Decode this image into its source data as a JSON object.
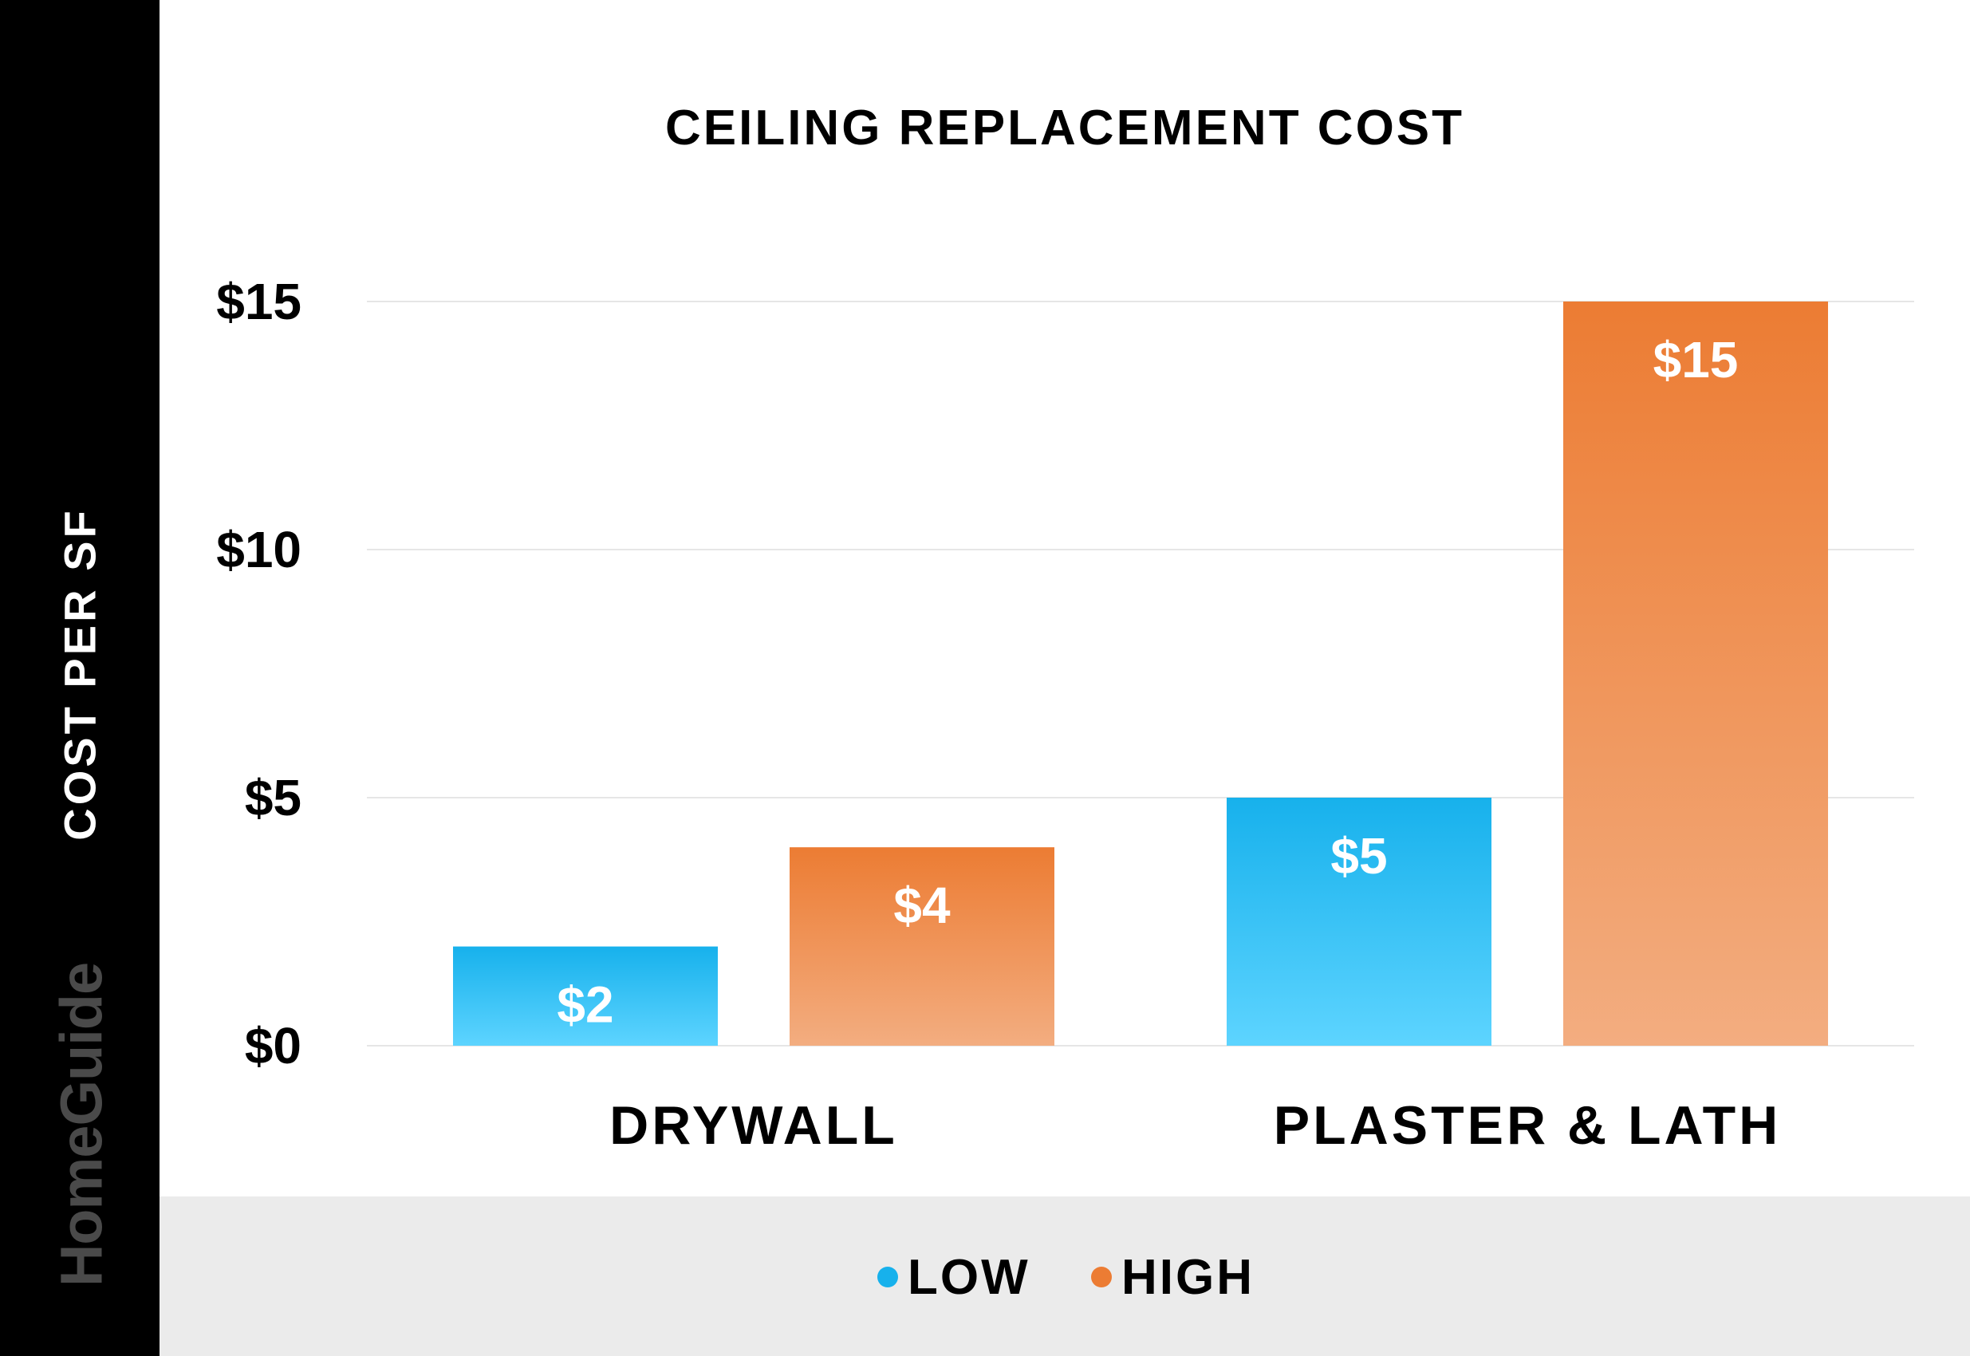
{
  "chart_data": {
    "type": "bar",
    "title": "CEILING REPLACEMENT COST",
    "ylabel": "COST PER SF",
    "xlabel": "",
    "categories": [
      "DRYWALL",
      "PLASTER & LATH"
    ],
    "series": [
      {
        "name": "LOW",
        "values": [
          2,
          5
        ],
        "labels": [
          "$2",
          "$5"
        ],
        "color": "#17b1ec",
        "color_light": "#5dd4ff"
      },
      {
        "name": "HIGH",
        "values": [
          4,
          15
        ],
        "labels": [
          "$4",
          "$15"
        ],
        "color": "#ec7c33",
        "color_light": "#f3ad80"
      }
    ],
    "yticks": [
      0,
      5,
      10,
      15
    ],
    "ytick_labels": [
      "$0",
      "$5",
      "$10",
      "$15"
    ],
    "ylim": [
      0,
      15
    ],
    "grid": true,
    "legend_position": "bottom"
  },
  "brand": "HomeGuide",
  "colors": {
    "sidebar": "#000000",
    "legend_band": "#ebebeb",
    "grid": "#e6e6e6"
  }
}
